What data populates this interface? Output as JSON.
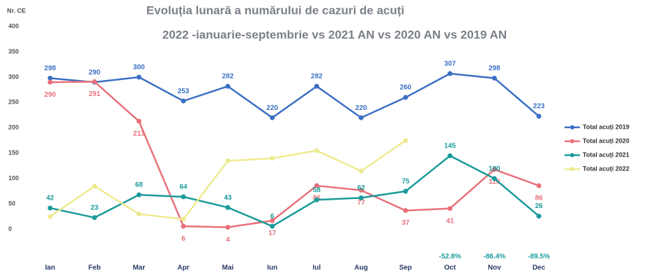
{
  "chart_data": {
    "type": "line",
    "title": [
      "Evoluția lunară a numărului de cazuri de acuți",
      "2022 -ianuarie-septembrie vs 2021 AN vs 2020 AN vs 2019 AN"
    ],
    "y_label": "Nr. CE",
    "categories": [
      "Ian",
      "Feb",
      "Mar",
      "Apr",
      "Mai",
      "Iun",
      "Iul",
      "Aug",
      "Sep",
      "Oct",
      "Nov",
      "Dec"
    ],
    "series": [
      {
        "name": "Total acuți 2019",
        "color": "#3b6fc4",
        "values": [
          298,
          290,
          300,
          253,
          282,
          220,
          282,
          220,
          260,
          307,
          298,
          223
        ],
        "labels": true
      },
      {
        "name": "Total acuți 2020",
        "color": "#e8707a",
        "values": [
          290,
          291,
          213,
          6,
          4,
          17,
          86,
          77,
          37,
          41,
          118,
          86
        ],
        "labels": true
      },
      {
        "name": "Total acuți 2021",
        "color": "#1a9a9a",
        "values": [
          42,
          23,
          68,
          64,
          43,
          6,
          58,
          62,
          75,
          145,
          100,
          26
        ],
        "labels": true
      },
      {
        "name": "Total acuți 2022",
        "color": "#eeea90",
        "values": [
          25,
          85,
          30,
          20,
          135,
          140,
          155,
          115,
          175,
          null,
          null,
          null
        ],
        "labels": false
      }
    ],
    "annotations": [
      {
        "category": "Oct",
        "text": "-52.8%"
      },
      {
        "category": "Nov",
        "text": "-86.4%"
      },
      {
        "category": "Dec",
        "text": "-89.5%"
      }
    ],
    "ylim": [
      -50,
      400
    ],
    "yticks": [
      0,
      50,
      100,
      150,
      200,
      250,
      300,
      350,
      400
    ],
    "grid": false,
    "legend": "right"
  }
}
